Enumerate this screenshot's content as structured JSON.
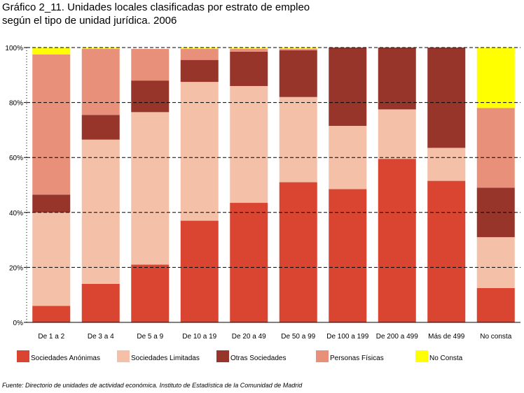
{
  "title_line1": "Gráfico 2_11. Unidades locales clasificadas por estrato de empleo",
  "title_line2": "según el tipo de unidad jurídica. 2006",
  "source": "Fuente: Directorio de unidades de actividad económica. Instituto de Estadística de la Comunidad de Madrid",
  "chart_data": {
    "type": "bar",
    "stacked": true,
    "percent": true,
    "categories": [
      "De 1 a 2",
      "De 3 a 4",
      "De 5 a 9",
      "De 10 a 19",
      "De 20 a 49",
      "De 50 a 99",
      "De 100 a 199",
      "De 200 a 499",
      "Más de 499",
      "No consta"
    ],
    "yticks": [
      "0%",
      "20%",
      "40%",
      "60%",
      "80%",
      "100%"
    ],
    "ylim": [
      0,
      100
    ],
    "grid": true,
    "legend_position": "bottom",
    "series": [
      {
        "name": "Sociedades Anónimas",
        "color": "#d94530",
        "values": [
          6,
          14,
          21,
          37,
          43.5,
          51,
          48.5,
          59.5,
          51.5,
          12.5
        ]
      },
      {
        "name": "Sociedades Limitadas",
        "color": "#f4c0a8",
        "values": [
          34,
          52.5,
          55.5,
          50.5,
          42.5,
          31,
          23,
          18,
          12,
          18.5
        ]
      },
      {
        "name": "Otras Sociedades",
        "color": "#97352a",
        "values": [
          6.5,
          9,
          11.5,
          8,
          12.5,
          17,
          28.5,
          22.5,
          36.5,
          18
        ]
      },
      {
        "name": "Personas Físicas",
        "color": "#e8907a",
        "values": [
          51,
          24,
          11.5,
          4,
          1,
          0.5,
          0,
          0,
          0,
          29
        ]
      },
      {
        "name": "No Consta",
        "color": "#ffff00",
        "values": [
          2.5,
          0.5,
          0,
          0.5,
          0.5,
          0.5,
          0,
          0,
          0,
          22
        ]
      }
    ]
  }
}
